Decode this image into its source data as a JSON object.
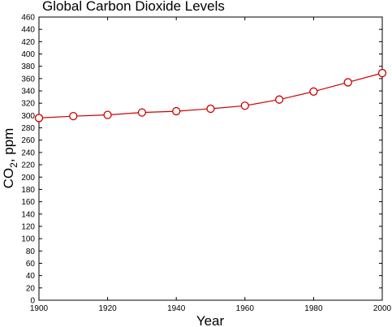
{
  "chart_data": {
    "type": "line",
    "title": "Global Carbon Dioxide Levels",
    "xlabel": "Year",
    "ylabel": "CO2, ppm",
    "ylabel_parts": {
      "base": "CO",
      "sub": "2",
      "rest": ", ppm"
    },
    "xlim": [
      1900,
      2000
    ],
    "ylim": [
      0,
      460
    ],
    "x_ticks": [
      1900,
      1920,
      1940,
      1960,
      1980,
      2000
    ],
    "y_ticks": [
      0,
      20,
      40,
      60,
      80,
      100,
      120,
      140,
      160,
      180,
      200,
      220,
      240,
      260,
      280,
      300,
      320,
      340,
      360,
      380,
      400,
      420,
      440,
      460
    ],
    "grid": false,
    "legend": "none",
    "series": [
      {
        "color": "#cc0000",
        "marker": "open-circle",
        "x": [
          1900,
          1910,
          1920,
          1930,
          1940,
          1950,
          1960,
          1970,
          1980,
          1990,
          2000
        ],
        "y": [
          296,
          299,
          301,
          305,
          307,
          311,
          316,
          326,
          339,
          354,
          369
        ]
      }
    ]
  }
}
